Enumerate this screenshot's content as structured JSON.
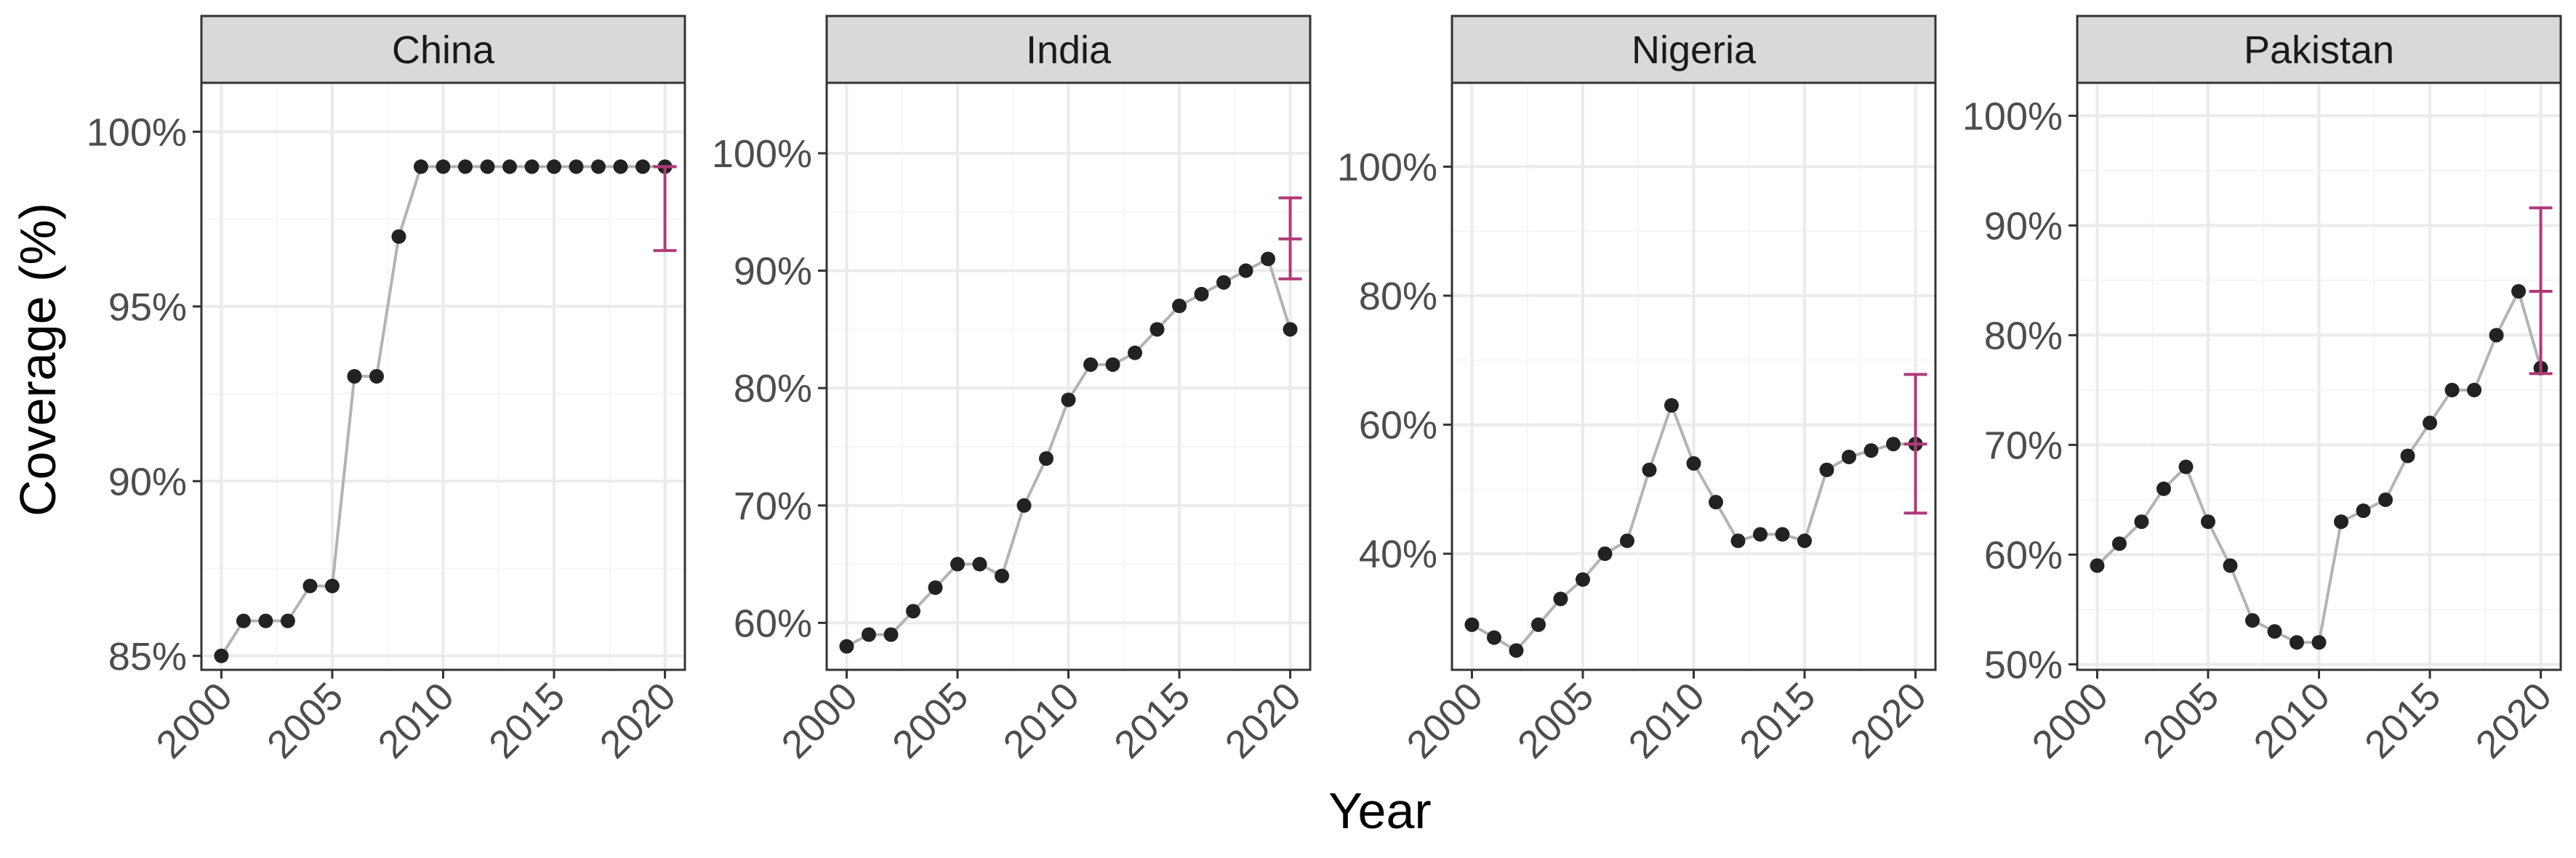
{
  "chart_data": {
    "type": "line",
    "xlabel": "Year",
    "ylabel": "Coverage (%)",
    "x_ticks": [
      2000,
      2005,
      2010,
      2015,
      2020
    ],
    "x_tick_labels": [
      "2000",
      "2005",
      "2010",
      "2015",
      "2020"
    ],
    "grid": true,
    "legend": "none",
    "colors": {
      "line": "#b3b3b3",
      "point": "#222222",
      "estimate": "#b03a78",
      "panel_border": "#333333",
      "strip_fill": "#d9d9d9",
      "grid_major": "#ebebeb",
      "grid_minor": "#f5f5f5"
    },
    "panels": [
      {
        "title": "China",
        "ylim": [
          84.6,
          101.4
        ],
        "y_ticks": [
          85,
          90,
          95,
          100
        ],
        "y_tick_labels": [
          "85%",
          "90%",
          "95%",
          "100%"
        ],
        "x": [
          2000,
          2001,
          2002,
          2003,
          2004,
          2005,
          2006,
          2007,
          2008,
          2009,
          2010,
          2011,
          2012,
          2013,
          2014,
          2015,
          2016,
          2017,
          2018,
          2019,
          2020
        ],
        "values": [
          85,
          86,
          86,
          86,
          87,
          87,
          93,
          93,
          97,
          99,
          99,
          99,
          99,
          99,
          99,
          99,
          99,
          99,
          99,
          99,
          99
        ],
        "estimate": {
          "x": 2020,
          "value": 99,
          "lower": 96.6,
          "upper": 99
        }
      },
      {
        "title": "India",
        "ylim": [
          56,
          106
        ],
        "y_ticks": [
          60,
          70,
          80,
          90,
          100
        ],
        "y_tick_labels": [
          "60%",
          "70%",
          "80%",
          "90%",
          "100%"
        ],
        "x": [
          2000,
          2001,
          2002,
          2003,
          2004,
          2005,
          2006,
          2007,
          2008,
          2009,
          2010,
          2011,
          2012,
          2013,
          2014,
          2015,
          2016,
          2017,
          2018,
          2019,
          2020
        ],
        "values": [
          58,
          59,
          59,
          61,
          63,
          65,
          65,
          64,
          70,
          74,
          79,
          82,
          82,
          83,
          85,
          87,
          88,
          89,
          90,
          91,
          85
        ],
        "estimate": {
          "x": 2020,
          "value": 92.7,
          "lower": 89.3,
          "upper": 96.2
        }
      },
      {
        "title": "Nigeria",
        "ylim": [
          22,
          113
        ],
        "y_ticks": [
          40,
          60,
          80,
          100
        ],
        "y_tick_labels": [
          "40%",
          "60%",
          "80%",
          "100%"
        ],
        "x": [
          2000,
          2001,
          2002,
          2003,
          2004,
          2005,
          2006,
          2007,
          2008,
          2009,
          2010,
          2011,
          2012,
          2013,
          2014,
          2015,
          2016,
          2017,
          2018,
          2019,
          2020
        ],
        "values": [
          29,
          27,
          25,
          29,
          33,
          36,
          40,
          42,
          53,
          63,
          54,
          48,
          42,
          43,
          43,
          42,
          53,
          55,
          56,
          57,
          57
        ],
        "estimate": {
          "x": 2020,
          "value": 57,
          "lower": 46.3,
          "upper": 67.8
        }
      },
      {
        "title": "Pakistan",
        "ylim": [
          49.5,
          103
        ],
        "y_ticks": [
          50,
          60,
          70,
          80,
          90,
          100
        ],
        "y_tick_labels": [
          "50%",
          "60%",
          "70%",
          "80%",
          "90%",
          "100%"
        ],
        "x": [
          2000,
          2001,
          2002,
          2003,
          2004,
          2005,
          2006,
          2007,
          2008,
          2009,
          2010,
          2011,
          2012,
          2013,
          2014,
          2015,
          2016,
          2017,
          2018,
          2019,
          2020
        ],
        "values": [
          59,
          61,
          63,
          66,
          68,
          63,
          59,
          54,
          53,
          52,
          52,
          63,
          64,
          65,
          69,
          72,
          75,
          75,
          80,
          84,
          77
        ],
        "estimate": {
          "x": 2020,
          "value": 84,
          "lower": 76.5,
          "upper": 91.6
        }
      }
    ]
  }
}
